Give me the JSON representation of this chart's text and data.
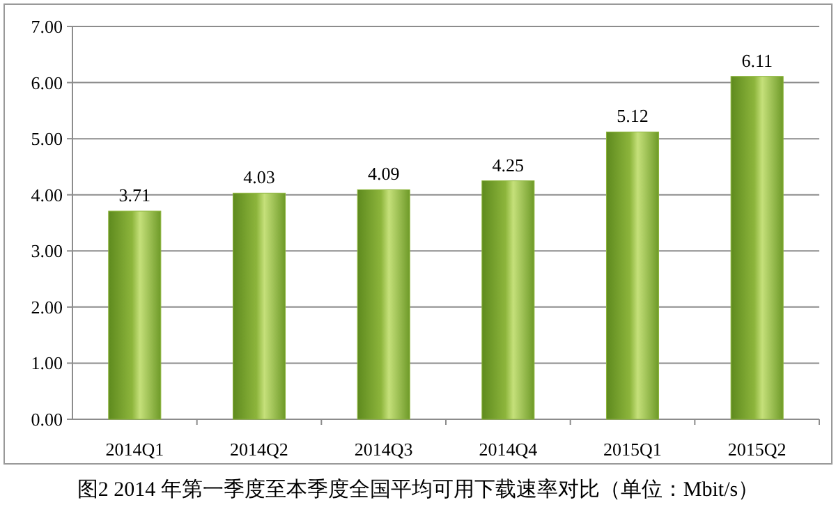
{
  "chart_data": {
    "type": "bar",
    "categories": [
      "2014Q1",
      "2014Q2",
      "2014Q3",
      "2014Q4",
      "2015Q1",
      "2015Q2"
    ],
    "values": [
      3.71,
      4.03,
      4.09,
      4.25,
      5.12,
      6.11
    ],
    "color": "#8db53c",
    "data_labels": true,
    "ylim": [
      0,
      7
    ],
    "yticks": [
      {
        "value": 0,
        "label": "0.00"
      },
      {
        "value": 1,
        "label": "1.00"
      },
      {
        "value": 2,
        "label": "2.00"
      },
      {
        "value": 3,
        "label": "3.00"
      },
      {
        "value": 4,
        "label": "4.00"
      },
      {
        "value": 5,
        "label": "5.00"
      },
      {
        "value": 6,
        "label": "6.00"
      },
      {
        "value": 7,
        "label": "7.00"
      }
    ],
    "grid": "y",
    "annotations": [
      "图2 2014 年第一季度至本季度全国平均可用下载速率对比（单位：Mbit/s）"
    ]
  }
}
